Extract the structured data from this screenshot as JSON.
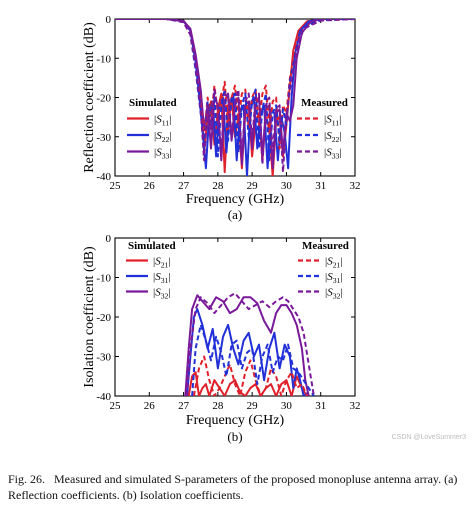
{
  "watermark": "CSDN @LoveSummer3",
  "caption": {
    "label": "Fig. 26.",
    "text": "Measured and simulated S-parameters of the proposed monopluse antenna array. (a) Reflection coefficients. (b) Isolation coefficients."
  },
  "colors": {
    "red": "#e0202a",
    "blue": "#2230d8",
    "purple": "#7a1a9a"
  },
  "chart_data": [
    {
      "type": "line",
      "sublabel": "(a)",
      "xlabel": "Frequency (GHz)",
      "ylabel": "Reflection coefficient (dB)",
      "xlim": [
        25,
        32
      ],
      "ylim": [
        -40,
        0
      ],
      "xticks": [
        25,
        26,
        27,
        28,
        29,
        30,
        31,
        32
      ],
      "yticks": [
        0,
        -10,
        -20,
        -30,
        -40
      ],
      "grid": false,
      "legend": {
        "left_title": "Simulated",
        "right_title": "Measured",
        "entries": [
          {
            "sim": "|S11|",
            "meas": "|S11|",
            "color": "red"
          },
          {
            "sim": "|S22|",
            "meas": "|S22|",
            "color": "blue"
          },
          {
            "sim": "|S33|",
            "meas": "|S33|",
            "color": "purple"
          }
        ]
      },
      "series": [
        {
          "legend": "Simulated |S11|",
          "color": "red",
          "dash": false,
          "x": [
            25,
            26.5,
            27,
            27.2,
            27.35,
            27.45,
            27.55,
            27.6,
            27.7,
            27.8,
            27.9,
            28.0,
            28.1,
            28.2,
            28.3,
            28.4,
            28.5,
            28.6,
            28.7,
            28.8,
            28.9,
            29.0,
            29.1,
            29.2,
            29.3,
            29.4,
            29.5,
            29.6,
            29.7,
            29.8,
            29.9,
            30.0,
            30.1,
            30.2,
            30.35,
            30.6,
            31,
            32
          ],
          "y": [
            0,
            0,
            -0.5,
            -3,
            -10,
            -17,
            -25,
            -34,
            -25,
            -21,
            -32,
            -23,
            -19,
            -39,
            -22,
            -20,
            -30,
            -25,
            -38,
            -24,
            -22,
            -35,
            -26,
            -24,
            -36,
            -25,
            -28,
            -40,
            -26,
            -25,
            -35,
            -27,
            -17,
            -8,
            -3,
            -0.6,
            0,
            0
          ]
        },
        {
          "legend": "Simulated |S22|",
          "color": "blue",
          "dash": false,
          "x": [
            25,
            26.5,
            27,
            27.2,
            27.35,
            27.45,
            27.55,
            27.65,
            27.75,
            27.85,
            27.95,
            28.05,
            28.15,
            28.25,
            28.35,
            28.45,
            28.55,
            28.65,
            28.75,
            28.85,
            28.95,
            29.05,
            29.15,
            29.25,
            29.35,
            29.45,
            29.55,
            29.65,
            29.75,
            29.85,
            29.95,
            30.05,
            30.15,
            30.25,
            30.4,
            30.65,
            31,
            32
          ],
          "y": [
            0,
            0,
            -0.5,
            -3,
            -11,
            -19,
            -28,
            -38,
            -24,
            -21,
            -35,
            -22,
            -20,
            -34,
            -23,
            -19,
            -36,
            -24,
            -22,
            -40,
            -23,
            -20,
            -33,
            -24,
            -22,
            -38,
            -23,
            -24,
            -36,
            -25,
            -29,
            -38,
            -20,
            -9,
            -3,
            -0.6,
            0,
            0
          ]
        },
        {
          "legend": "Simulated |S33|",
          "color": "purple",
          "dash": false,
          "x": [
            25,
            26.5,
            27,
            27.2,
            27.35,
            27.5,
            27.6,
            27.7,
            27.8,
            27.9,
            28.0,
            28.1,
            28.2,
            28.3,
            28.4,
            28.5,
            28.6,
            28.7,
            28.8,
            28.9,
            29.0,
            29.1,
            29.2,
            29.3,
            29.4,
            29.5,
            29.6,
            29.7,
            29.8,
            29.9,
            30.0,
            30.1,
            30.2,
            30.3,
            30.45,
            30.7,
            31,
            32
          ],
          "y": [
            0,
            0,
            -0.5,
            -2.5,
            -9,
            -18,
            -28,
            -22,
            -33,
            -20,
            -22,
            -36,
            -21,
            -19,
            -31,
            -22,
            -20,
            -37,
            -22,
            -21,
            -33,
            -22,
            -20,
            -35,
            -23,
            -22,
            -38,
            -24,
            -23,
            -34,
            -24,
            -26,
            -22,
            -10,
            -3.5,
            -0.8,
            0,
            0
          ]
        },
        {
          "legend": "Measured |S11|",
          "color": "red",
          "dash": true,
          "x": [
            25,
            26.5,
            27,
            27.2,
            27.35,
            27.5,
            27.6,
            27.7,
            27.8,
            27.9,
            28.0,
            28.1,
            28.2,
            28.3,
            28.4,
            28.5,
            28.6,
            28.7,
            28.8,
            28.9,
            29.0,
            29.1,
            29.2,
            29.3,
            29.4,
            29.5,
            29.6,
            29.7,
            29.8,
            29.9,
            30.0,
            30.1,
            30.3,
            30.5,
            31,
            32
          ],
          "y": [
            0,
            0,
            -0.8,
            -4,
            -12,
            -22,
            -30,
            -20,
            -26,
            -17,
            -24,
            -21,
            -16,
            -28,
            -20,
            -17,
            -26,
            -19,
            -18,
            -28,
            -20,
            -18,
            -27,
            -19,
            -17,
            -29,
            -21,
            -20,
            -33,
            -22,
            -24,
            -15,
            -6,
            -2,
            -0.3,
            0
          ]
        },
        {
          "legend": "Measured |S22|",
          "color": "blue",
          "dash": true,
          "x": [
            25,
            26.5,
            27,
            27.2,
            27.35,
            27.5,
            27.6,
            27.7,
            27.8,
            27.9,
            28.0,
            28.1,
            28.2,
            28.3,
            28.4,
            28.5,
            28.6,
            28.7,
            28.8,
            28.9,
            29.0,
            29.1,
            29.2,
            29.3,
            29.4,
            29.5,
            29.6,
            29.7,
            29.8,
            29.9,
            30.0,
            30.1,
            30.3,
            30.5,
            31,
            32
          ],
          "y": [
            0,
            0,
            -0.8,
            -4,
            -13,
            -24,
            -33,
            -21,
            -27,
            -19,
            -35,
            -22,
            -18,
            -31,
            -20,
            -19,
            -34,
            -22,
            -19,
            -30,
            -21,
            -18,
            -33,
            -23,
            -19,
            -36,
            -24,
            -22,
            -31,
            -23,
            -27,
            -16,
            -7,
            -2,
            -0.3,
            0
          ]
        },
        {
          "legend": "Measured |S33|",
          "color": "purple",
          "dash": true,
          "x": [
            25,
            26.5,
            27,
            27.2,
            27.35,
            27.5,
            27.6,
            27.7,
            27.8,
            27.9,
            28.0,
            28.1,
            28.2,
            28.3,
            28.4,
            28.5,
            28.6,
            28.7,
            28.8,
            28.9,
            29.0,
            29.1,
            29.2,
            29.3,
            29.4,
            29.5,
            29.6,
            29.7,
            29.8,
            29.9,
            30.0,
            30.1,
            30.3,
            30.5,
            31,
            32
          ],
          "y": [
            0,
            0,
            -0.8,
            -4,
            -12,
            -23,
            -36,
            -22,
            -28,
            -18,
            -23,
            -34,
            -19,
            -20,
            -30,
            -21,
            -18,
            -36,
            -21,
            -19,
            -31,
            -20,
            -19,
            -37,
            -22,
            -20,
            -34,
            -23,
            -22,
            -39,
            -25,
            -18,
            -8,
            -2.5,
            -0.4,
            0
          ]
        }
      ]
    },
    {
      "type": "line",
      "sublabel": "(b)",
      "xlabel": "Frequency (GHz)",
      "ylabel": "Isolation coefficient (dB)",
      "xlim": [
        25,
        32
      ],
      "ylim": [
        -40,
        0
      ],
      "xticks": [
        25,
        26,
        27,
        28,
        29,
        30,
        31,
        32
      ],
      "yticks": [
        0,
        -10,
        -20,
        -30,
        -40
      ],
      "grid": false,
      "legend": {
        "left_title": "Simulated",
        "right_title": "Measured",
        "entries": [
          {
            "sim": "|S21|",
            "meas": "|S21|",
            "color": "red"
          },
          {
            "sim": "|S31|",
            "meas": "|S31|",
            "color": "blue"
          },
          {
            "sim": "|S32|",
            "meas": "|S32|",
            "color": "purple"
          }
        ]
      },
      "series": [
        {
          "legend": "Simulated |S21|",
          "color": "red",
          "dash": false,
          "x": [
            27.15,
            27.25,
            27.35,
            27.45,
            27.55,
            27.65,
            27.75,
            27.9,
            28.05,
            28.2,
            28.35,
            28.5,
            28.65,
            28.8,
            28.95,
            29.1,
            29.25,
            29.4,
            29.55,
            29.7,
            29.85,
            30.0,
            30.15,
            30.3,
            30.45,
            30.6
          ],
          "y": [
            -40,
            -35,
            -34,
            -40,
            -38,
            -37,
            -40,
            -36,
            -38,
            -40,
            -37,
            -36,
            -39,
            -40,
            -38,
            -37,
            -40,
            -38,
            -37,
            -40,
            -37,
            -36,
            -40,
            -35,
            -38,
            -40
          ]
        },
        {
          "legend": "Simulated |S31|",
          "color": "blue",
          "dash": false,
          "x": [
            27.1,
            27.2,
            27.3,
            27.4,
            27.55,
            27.7,
            27.85,
            28.0,
            28.15,
            28.3,
            28.45,
            28.6,
            28.75,
            28.9,
            29.05,
            29.2,
            29.35,
            29.5,
            29.65,
            29.8,
            29.95,
            30.1,
            30.2,
            30.3,
            30.4,
            30.5,
            30.65
          ],
          "y": [
            -40,
            -30,
            -20,
            -18,
            -22,
            -28,
            -23,
            -33,
            -25,
            -22,
            -28,
            -32,
            -26,
            -24,
            -30,
            -27,
            -36,
            -28,
            -24,
            -33,
            -27,
            -30,
            -38,
            -33,
            -36,
            -40,
            -39
          ]
        },
        {
          "legend": "Simulated |S32|",
          "color": "purple",
          "dash": false,
          "x": [
            27.05,
            27.15,
            27.25,
            27.4,
            27.55,
            27.75,
            27.95,
            28.15,
            28.35,
            28.55,
            28.75,
            28.95,
            29.15,
            29.35,
            29.55,
            29.7,
            29.85,
            30.0,
            30.15,
            30.3,
            30.45,
            30.55,
            30.65
          ],
          "y": [
            -40,
            -28,
            -18,
            -14.5,
            -16,
            -18,
            -15,
            -16,
            -19,
            -18,
            -15,
            -15,
            -16.5,
            -21,
            -24,
            -19,
            -17,
            -17,
            -19,
            -22,
            -28,
            -36,
            -40
          ]
        },
        {
          "legend": "Measured |S21|",
          "color": "red",
          "dash": true,
          "x": [
            27.3,
            27.45,
            27.6,
            27.75,
            27.9,
            28.05,
            28.2,
            28.35,
            28.5,
            28.65,
            28.8,
            28.95,
            29.1,
            29.25,
            29.4,
            29.55,
            29.7,
            29.85,
            30.0,
            30.15,
            30.3,
            30.45,
            30.6
          ],
          "y": [
            -40,
            -33,
            -30,
            -36,
            -40,
            -38,
            -35,
            -32,
            -37,
            -40,
            -34,
            -31,
            -36,
            -40,
            -38,
            -33,
            -35,
            -40,
            -36,
            -34,
            -38,
            -37,
            -40
          ]
        },
        {
          "legend": "Measured |S31|",
          "color": "blue",
          "dash": true,
          "x": [
            27.25,
            27.35,
            27.5,
            27.65,
            27.8,
            27.95,
            28.1,
            28.25,
            28.4,
            28.55,
            28.7,
            28.85,
            29.0,
            29.15,
            29.3,
            29.45,
            29.6,
            29.75,
            29.9,
            30.05,
            30.2,
            30.35,
            30.5,
            30.65,
            30.8
          ],
          "y": [
            -40,
            -28,
            -22,
            -26,
            -31,
            -25,
            -29,
            -35,
            -27,
            -26,
            -33,
            -29,
            -28,
            -37,
            -30,
            -27,
            -34,
            -30,
            -31,
            -27,
            -33,
            -34,
            -36,
            -38,
            -40
          ]
        },
        {
          "legend": "Measured |S32|",
          "color": "purple",
          "dash": true,
          "x": [
            27.1,
            27.2,
            27.35,
            27.5,
            27.7,
            27.9,
            28.1,
            28.3,
            28.5,
            28.7,
            28.9,
            29.1,
            29.3,
            29.5,
            29.7,
            29.9,
            30.05,
            30.2,
            30.35,
            30.5,
            30.65,
            30.8
          ],
          "y": [
            -40,
            -28,
            -18,
            -15,
            -16.5,
            -19,
            -17,
            -15,
            -14,
            -16,
            -18,
            -17,
            -16,
            -17.5,
            -16,
            -15,
            -16,
            -18,
            -20,
            -24,
            -32,
            -40
          ]
        }
      ]
    }
  ]
}
